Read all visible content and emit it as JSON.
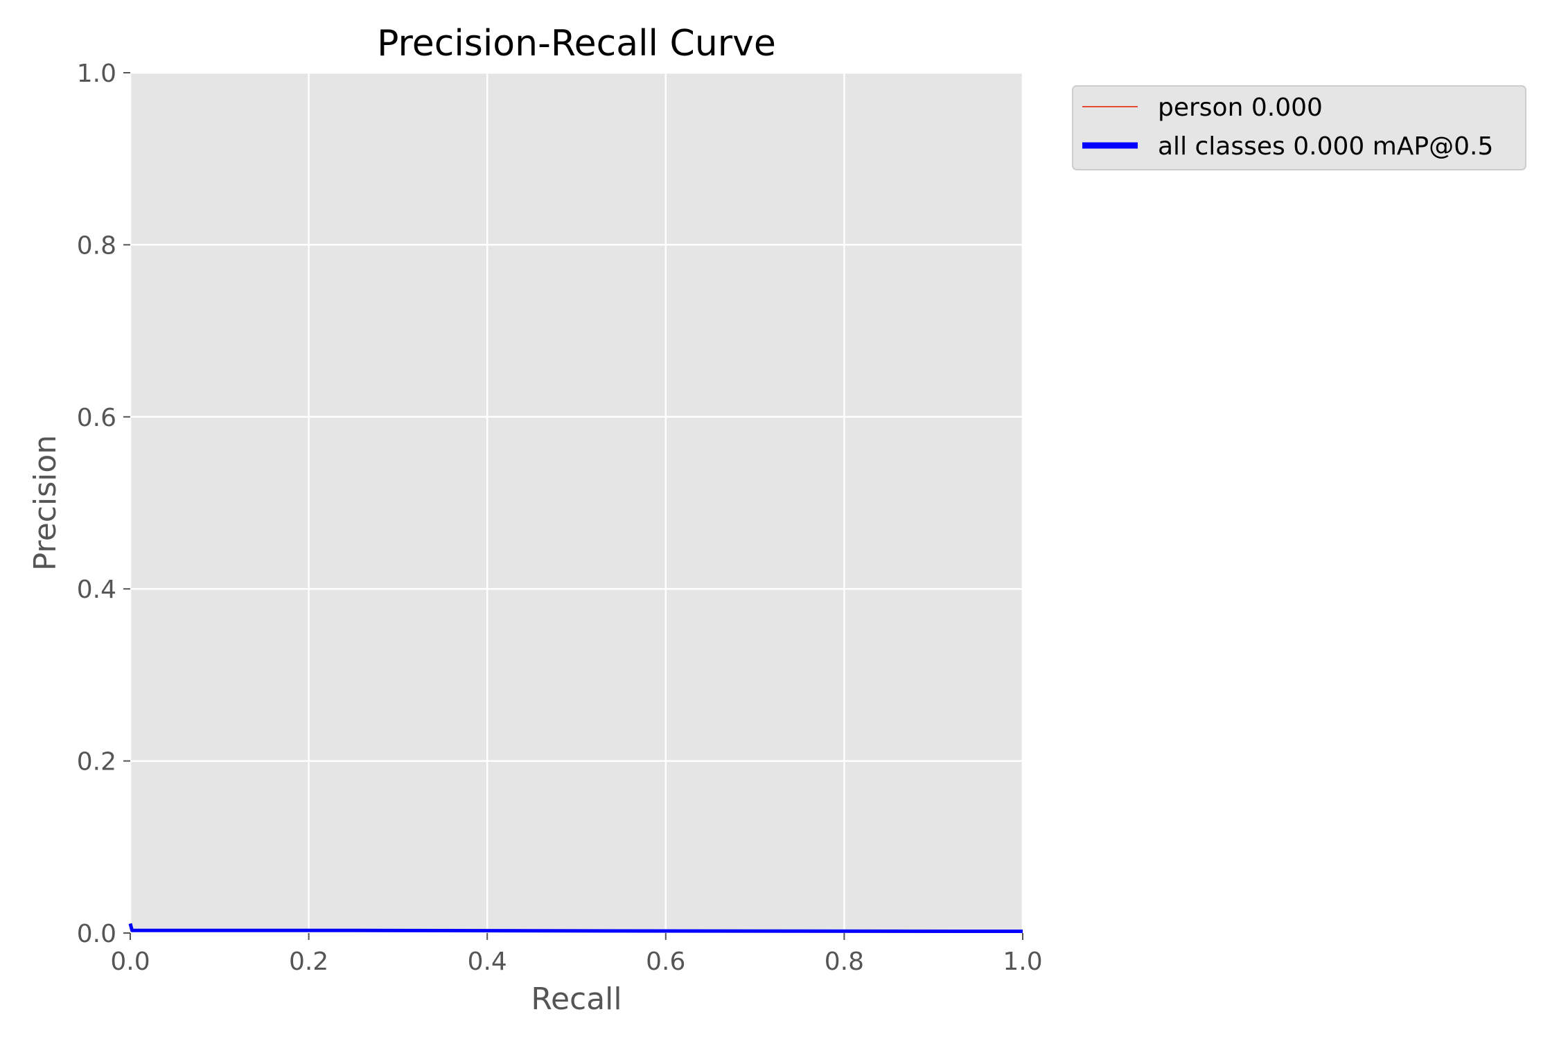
{
  "chart_data": {
    "type": "line",
    "title": "Precision-Recall Curve",
    "xlabel": "Recall",
    "ylabel": "Precision",
    "xlim": [
      0,
      1
    ],
    "ylim": [
      0,
      1
    ],
    "xticks": [
      "0.0",
      "0.2",
      "0.4",
      "0.6",
      "0.8",
      "1.0"
    ],
    "yticks": [
      "0.0",
      "0.2",
      "0.4",
      "0.6",
      "0.8",
      "1.0"
    ],
    "grid": true,
    "legend_position": "outside-top-right",
    "background_color": "#e5e5e5",
    "series": [
      {
        "name": "person 0.000",
        "color": "#e24a33",
        "x": [
          0.0,
          0.002,
          0.25,
          0.5,
          0.75,
          1.0
        ],
        "y": [
          0.011,
          0.003,
          0.003,
          0.0025,
          0.0022,
          0.002
        ]
      },
      {
        "name": "all classes 0.000 mAP@0.5",
        "color": "#0000ff",
        "x": [
          0.0,
          0.002,
          0.25,
          0.5,
          0.75,
          1.0
        ],
        "y": [
          0.011,
          0.003,
          0.003,
          0.0025,
          0.0022,
          0.002
        ]
      }
    ]
  }
}
